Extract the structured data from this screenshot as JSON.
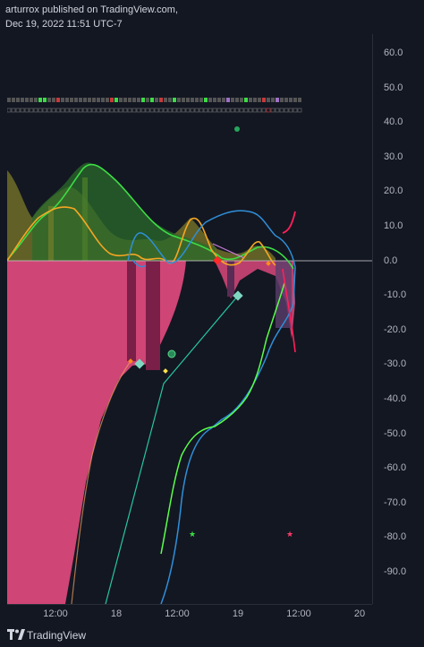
{
  "header": {
    "publisher_line": "arturrox published on TradingView.com,",
    "timestamp_line": "Dec 19, 2022 11:51 UTC-7"
  },
  "price_scale": {
    "labels": [
      "60.0",
      "50.0",
      "40.0",
      "30.0",
      "20.0",
      "10.0",
      "0.0",
      "-10.0",
      "-20.0",
      "-30.0",
      "-40.0",
      "-50.0",
      "-60.0",
      "-70.0",
      "-80.0",
      "-90.0"
    ]
  },
  "time_scale": {
    "labels": [
      "12:00",
      "18",
      "12:00",
      "19",
      "12:00",
      "20"
    ]
  },
  "footer": {
    "brand": "TradingView"
  },
  "colors": {
    "background": "#131722",
    "pink_fill": "#d9487a",
    "dark_pink": "#7a1f47",
    "green_line": "#3ddc45",
    "dark_green_fill": "#2b6b2b",
    "orange_line": "#f5a623",
    "olive_fill": "#7b7a2a",
    "blue_line": "#2f8fd8",
    "cyan_line": "#26c6a4",
    "red_line": "#ff1f5a",
    "zero_line": "#c8c8c8"
  },
  "icons": {
    "logo": "tradingview-logo-icon"
  }
}
